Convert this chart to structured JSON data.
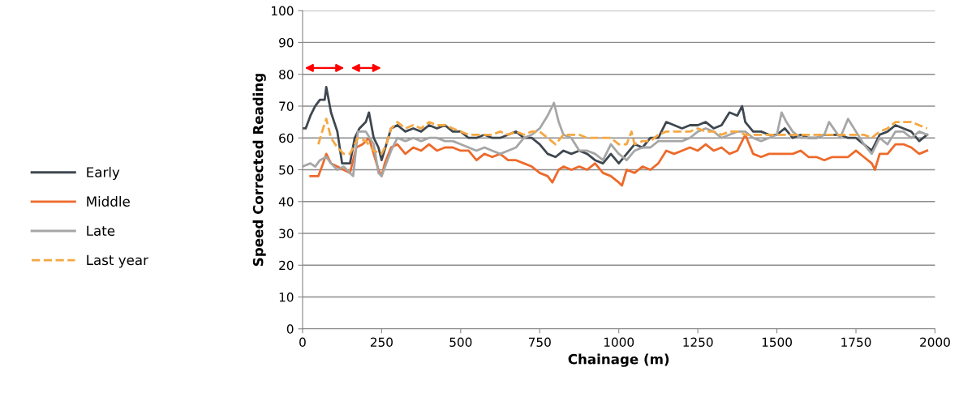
{
  "chart_data": {
    "type": "line",
    "xlabel": "Chainage (m)",
    "ylabel": "Speed Corrected Reading",
    "xlim": [
      0,
      2000
    ],
    "xticks": [
      0,
      250,
      500,
      750,
      1000,
      1250,
      1500,
      1750,
      2000
    ],
    "ylim": [
      0,
      100
    ],
    "yticks": [
      0,
      10,
      20,
      30,
      40,
      50,
      60,
      70,
      80,
      90,
      100
    ],
    "grid": "y",
    "legend": "left",
    "marker": "none",
    "series": [
      {
        "name": "Early",
        "color": "#3f474f",
        "line_style": "solid",
        "x": [
          0,
          10,
          25,
          40,
          55,
          70,
          75,
          90,
          110,
          125,
          150,
          165,
          180,
          200,
          210,
          225,
          240,
          250,
          265,
          280,
          300,
          325,
          350,
          375,
          400,
          425,
          450,
          475,
          500,
          525,
          550,
          575,
          600,
          625,
          650,
          675,
          700,
          725,
          750,
          775,
          800,
          825,
          850,
          875,
          900,
          925,
          950,
          975,
          1000,
          1025,
          1050,
          1075,
          1100,
          1125,
          1150,
          1175,
          1200,
          1225,
          1250,
          1275,
          1300,
          1325,
          1350,
          1375,
          1390,
          1400,
          1425,
          1450,
          1475,
          1500,
          1525,
          1550,
          1575,
          1600,
          1625,
          1650,
          1675,
          1700,
          1725,
          1750,
          1775,
          1800,
          1825,
          1850,
          1875,
          1900,
          1925,
          1950,
          1975
        ],
        "values": [
          63,
          63,
          67,
          70,
          72,
          72,
          76,
          68,
          62,
          52,
          52,
          60,
          63,
          65,
          68,
          60,
          57,
          53,
          58,
          63,
          64,
          62,
          63,
          62,
          64,
          63,
          64,
          62,
          62,
          60,
          60,
          61,
          60,
          60,
          61,
          62,
          60,
          60,
          58,
          55,
          54,
          56,
          55,
          56,
          55,
          53,
          52,
          55,
          52,
          55,
          58,
          57,
          60,
          60,
          65,
          64,
          63,
          64,
          64,
          65,
          63,
          64,
          68,
          67,
          70,
          65,
          62,
          62,
          61,
          61,
          63,
          60,
          61,
          60,
          60,
          61,
          61,
          61,
          60,
          60,
          58,
          56,
          61,
          62,
          64,
          63,
          62,
          59,
          61
        ]
      },
      {
        "name": "Middle",
        "color": "#ed6a2b",
        "line_style": "solid",
        "x": [
          25,
          50,
          65,
          75,
          90,
          110,
          130,
          150,
          170,
          190,
          210,
          225,
          240,
          250,
          260,
          280,
          300,
          325,
          350,
          375,
          400,
          425,
          450,
          475,
          500,
          525,
          550,
          575,
          600,
          625,
          650,
          675,
          700,
          725,
          750,
          775,
          790,
          810,
          825,
          850,
          875,
          900,
          925,
          950,
          975,
          1000,
          1010,
          1025,
          1050,
          1075,
          1100,
          1125,
          1150,
          1175,
          1200,
          1225,
          1250,
          1275,
          1300,
          1325,
          1350,
          1375,
          1400,
          1425,
          1450,
          1475,
          1500,
          1525,
          1550,
          1575,
          1600,
          1625,
          1650,
          1675,
          1700,
          1725,
          1750,
          1775,
          1800,
          1810,
          1825,
          1850,
          1875,
          1900,
          1925,
          1950,
          1975
        ],
        "values": [
          48,
          48,
          52,
          55,
          52,
          51,
          50,
          49,
          57,
          58,
          60,
          55,
          50,
          48,
          52,
          57,
          58,
          55,
          57,
          56,
          58,
          56,
          57,
          57,
          56,
          56,
          53,
          55,
          54,
          55,
          53,
          53,
          52,
          51,
          49,
          48,
          46,
          50,
          51,
          50,
          51,
          50,
          52,
          49,
          48,
          46,
          45,
          50,
          49,
          51,
          50,
          52,
          56,
          55,
          56,
          57,
          56,
          58,
          56,
          57,
          55,
          56,
          61,
          55,
          54,
          55,
          55,
          55,
          55,
          56,
          54,
          54,
          53,
          54,
          54,
          54,
          56,
          54,
          52,
          50,
          55,
          55,
          58,
          58,
          57,
          55,
          56
        ]
      },
      {
        "name": "Late",
        "color": "#a6a6a6",
        "line_style": "solid",
        "x": [
          0,
          25,
          40,
          55,
          75,
          90,
          110,
          130,
          150,
          160,
          175,
          200,
          225,
          240,
          250,
          265,
          280,
          300,
          325,
          350,
          375,
          400,
          425,
          450,
          475,
          500,
          525,
          550,
          575,
          600,
          625,
          650,
          675,
          700,
          725,
          750,
          775,
          795,
          810,
          825,
          850,
          875,
          900,
          925,
          950,
          975,
          1000,
          1025,
          1050,
          1075,
          1100,
          1125,
          1150,
          1175,
          1200,
          1225,
          1250,
          1275,
          1300,
          1325,
          1350,
          1375,
          1400,
          1425,
          1450,
          1475,
          1500,
          1515,
          1530,
          1550,
          1575,
          1600,
          1625,
          1650,
          1665,
          1700,
          1725,
          1750,
          1775,
          1800,
          1825,
          1850,
          1875,
          1900,
          1925,
          1950,
          1975
        ],
        "values": [
          51,
          52,
          51,
          53,
          54,
          52,
          50,
          51,
          49,
          48,
          62,
          62,
          58,
          49,
          48,
          52,
          56,
          60,
          59,
          60,
          59,
          60,
          60,
          59,
          59,
          58,
          57,
          56,
          57,
          56,
          55,
          56,
          57,
          60,
          61,
          63,
          67,
          71,
          65,
          61,
          60,
          56,
          56,
          55,
          53,
          58,
          55,
          53,
          56,
          57,
          57,
          59,
          59,
          59,
          59,
          60,
          62,
          63,
          62,
          60,
          61,
          62,
          62,
          60,
          59,
          60,
          61,
          68,
          65,
          62,
          60,
          60,
          60,
          61,
          65,
          60,
          66,
          62,
          58,
          55,
          60,
          58,
          62,
          62,
          60,
          62,
          61
        ]
      },
      {
        "name": "Last year",
        "color": "#f5a742",
        "line_style": "dashed",
        "x": [
          50,
          65,
          75,
          90,
          110,
          130,
          150,
          175,
          200,
          225,
          250,
          265,
          280,
          300,
          325,
          350,
          375,
          400,
          425,
          450,
          475,
          500,
          525,
          550,
          575,
          600,
          625,
          650,
          675,
          700,
          725,
          750,
          775,
          800,
          825,
          850,
          875,
          900,
          925,
          950,
          975,
          1000,
          1025,
          1040,
          1050,
          1075,
          1100,
          1125,
          1150,
          1175,
          1200,
          1225,
          1250,
          1275,
          1300,
          1325,
          1350,
          1375,
          1400,
          1425,
          1450,
          1475,
          1500,
          1525,
          1550,
          1575,
          1600,
          1625,
          1650,
          1675,
          1700,
          1725,
          1750,
          1775,
          1800,
          1825,
          1850,
          1875,
          1900,
          1925,
          1950,
          1975
        ],
        "values": [
          58,
          63,
          66,
          60,
          57,
          55,
          55,
          60,
          59,
          56,
          55,
          58,
          63,
          65,
          63,
          64,
          63,
          65,
          64,
          64,
          63,
          62,
          61,
          61,
          61,
          61,
          62,
          61,
          62,
          61,
          62,
          62,
          60,
          58,
          61,
          61,
          61,
          60,
          60,
          60,
          60,
          58,
          58,
          62,
          58,
          59,
          59,
          61,
          62,
          62,
          62,
          62,
          63,
          62,
          62,
          61,
          62,
          62,
          61,
          61,
          61,
          61,
          61,
          61,
          61,
          61,
          61,
          61,
          61,
          61,
          61,
          61,
          61,
          61,
          60,
          62,
          63,
          65,
          65,
          65,
          64,
          63
        ]
      }
    ]
  }
}
